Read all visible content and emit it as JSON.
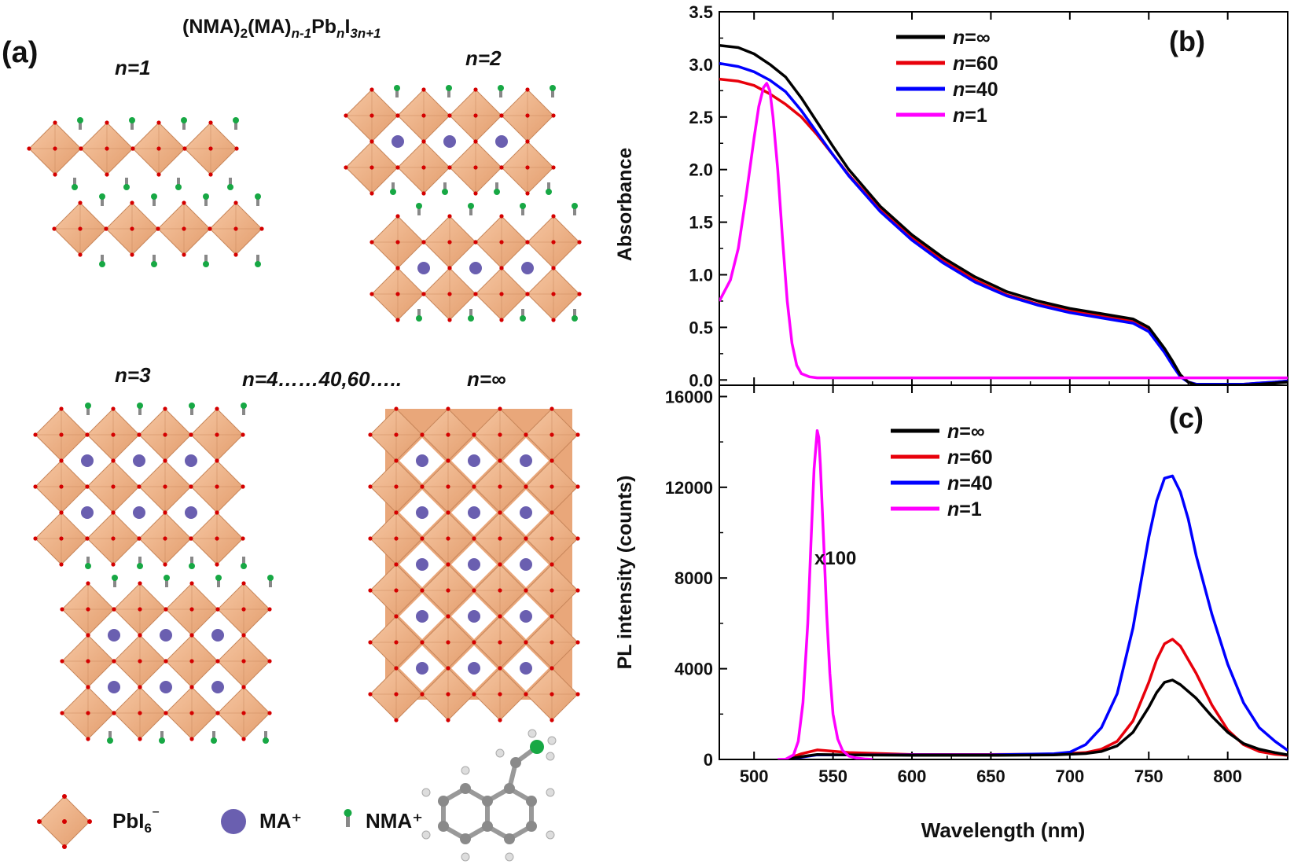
{
  "panel_a": {
    "label": "(a)",
    "formula": "(NMA)2(MA)n-1PbnI3n+1",
    "formula_parts": {
      "a": "(NMA)",
      "b": "2",
      "c": "(MA)",
      "d": "n-1",
      "e": "Pb",
      "f": "n",
      "g": "I",
      "h": "3n+1"
    },
    "n1": "n=1",
    "n2": "n=2",
    "n3": "n=3",
    "n4": "n=4……40,60…..",
    "ninf": "n=∞",
    "legend": {
      "pbi6": "PbI6⁻",
      "pbi6_base": "PbI",
      "pbi6_sub": "6",
      "pbi6_sup": "⁻",
      "ma": "MA⁺",
      "nma": "NMA⁺"
    },
    "colors": {
      "octahedron": "#f2b48a",
      "octahedron_edge": "#c8865a",
      "iodide": "#d40000",
      "ma": "#6a5fb0",
      "nma_head": "#17a844",
      "nma_tail": "#888888"
    }
  },
  "chart_data": [
    {
      "type": "line",
      "panel_label": "(b)",
      "title": "",
      "xlabel": "",
      "ylabel": "Absorbance",
      "xlim": [
        478,
        838
      ],
      "ylim": [
        -0.05,
        3.5
      ],
      "yticks": [
        0.0,
        0.5,
        1.0,
        1.5,
        2.0,
        2.5,
        3.0,
        3.5
      ],
      "ytick_labels": [
        "0.0",
        "0.5",
        "1.0",
        "1.5",
        "2.0",
        "2.5",
        "3.0",
        "3.5"
      ],
      "legend_position": "top-center",
      "series": [
        {
          "name": "n=∞",
          "color": "#000000",
          "x": [
            478,
            490,
            500,
            510,
            520,
            530,
            540,
            550,
            560,
            580,
            600,
            620,
            640,
            660,
            680,
            700,
            720,
            740,
            750,
            760,
            765,
            770,
            775,
            780,
            790,
            800,
            810,
            820,
            830,
            838
          ],
          "y": [
            3.18,
            3.16,
            3.1,
            3.0,
            2.88,
            2.68,
            2.45,
            2.22,
            2.0,
            1.65,
            1.38,
            1.16,
            0.98,
            0.84,
            0.75,
            0.68,
            0.63,
            0.58,
            0.5,
            0.3,
            0.18,
            0.05,
            -0.02,
            -0.05,
            -0.05,
            -0.05,
            -0.05,
            -0.04,
            -0.03,
            -0.02
          ]
        },
        {
          "name": "n=60",
          "color": "#e8000b",
          "x": [
            478,
            490,
            500,
            510,
            520,
            530,
            540,
            550,
            560,
            580,
            600,
            620,
            640,
            660,
            680,
            700,
            720,
            740,
            750,
            760,
            765,
            770,
            775,
            780,
            790,
            800,
            810,
            820,
            830,
            838
          ],
          "y": [
            2.86,
            2.84,
            2.8,
            2.72,
            2.62,
            2.5,
            2.33,
            2.14,
            1.95,
            1.62,
            1.35,
            1.13,
            0.95,
            0.81,
            0.72,
            0.66,
            0.61,
            0.56,
            0.48,
            0.28,
            0.16,
            0.04,
            -0.02,
            -0.04,
            -0.04,
            -0.04,
            -0.04,
            -0.03,
            -0.02,
            -0.01
          ]
        },
        {
          "name": "n=40",
          "color": "#0000ff",
          "x": [
            478,
            490,
            500,
            510,
            520,
            530,
            540,
            550,
            560,
            580,
            600,
            620,
            640,
            660,
            680,
            700,
            720,
            740,
            750,
            760,
            765,
            770,
            775,
            780,
            790,
            800,
            810,
            820,
            830,
            838
          ],
          "y": [
            3.01,
            2.98,
            2.93,
            2.85,
            2.74,
            2.56,
            2.35,
            2.14,
            1.94,
            1.6,
            1.33,
            1.11,
            0.93,
            0.8,
            0.71,
            0.64,
            0.59,
            0.54,
            0.46,
            0.26,
            0.14,
            0.03,
            -0.02,
            -0.04,
            -0.04,
            -0.04,
            -0.04,
            -0.03,
            -0.02,
            -0.01
          ]
        },
        {
          "name": "n=1",
          "color": "#ff00ff",
          "x": [
            478,
            485,
            490,
            495,
            500,
            503,
            506,
            508,
            510,
            512,
            515,
            518,
            521,
            524,
            527,
            530,
            535,
            540,
            560,
            600,
            700,
            760,
            780,
            800,
            838
          ],
          "y": [
            0.75,
            0.95,
            1.25,
            1.75,
            2.3,
            2.6,
            2.78,
            2.82,
            2.75,
            2.5,
            2.0,
            1.35,
            0.75,
            0.35,
            0.14,
            0.06,
            0.03,
            0.02,
            0.02,
            0.02,
            0.02,
            0.02,
            0.02,
            0.02,
            0.02
          ]
        }
      ]
    },
    {
      "type": "line",
      "panel_label": "(c)",
      "title": "",
      "xlabel": "Wavelength (nm)",
      "ylabel": "PL intensity (counts)",
      "xlim": [
        478,
        838
      ],
      "ylim": [
        0,
        16500
      ],
      "xticks": [
        500,
        550,
        600,
        650,
        700,
        750,
        800
      ],
      "xtick_labels": [
        "500",
        "550",
        "600",
        "650",
        "700",
        "750",
        "800"
      ],
      "yticks": [
        0,
        4000,
        8000,
        12000,
        16000
      ],
      "ytick_labels": [
        "0",
        "4000",
        "8000",
        "12000",
        "16000"
      ],
      "annotation": "x100",
      "legend_position": "top-center",
      "series": [
        {
          "name": "n=∞",
          "color": "#000000",
          "x": [
            520,
            530,
            540,
            560,
            600,
            650,
            690,
            710,
            720,
            730,
            740,
            750,
            755,
            760,
            765,
            770,
            780,
            790,
            800,
            810,
            820,
            830,
            838
          ],
          "y": [
            0,
            120,
            220,
            200,
            180,
            180,
            200,
            260,
            350,
            600,
            1200,
            2300,
            2950,
            3400,
            3500,
            3300,
            2700,
            1900,
            1200,
            700,
            450,
            300,
            200
          ]
        },
        {
          "name": "n=60",
          "color": "#e8000b",
          "x": [
            520,
            530,
            540,
            560,
            600,
            650,
            690,
            710,
            720,
            730,
            740,
            750,
            755,
            760,
            765,
            770,
            780,
            790,
            800,
            810,
            820,
            830,
            838
          ],
          "y": [
            0,
            250,
            420,
            300,
            220,
            220,
            230,
            300,
            450,
            800,
            1700,
            3400,
            4400,
            5100,
            5300,
            5000,
            3800,
            2400,
            1300,
            650,
            350,
            230,
            180
          ]
        },
        {
          "name": "n=40",
          "color": "#0000ff",
          "x": [
            520,
            530,
            540,
            560,
            600,
            650,
            690,
            700,
            710,
            720,
            730,
            740,
            745,
            750,
            755,
            760,
            765,
            770,
            775,
            780,
            790,
            800,
            810,
            820,
            830,
            838
          ],
          "y": [
            0,
            100,
            200,
            200,
            200,
            200,
            250,
            320,
            650,
            1400,
            2900,
            5800,
            7800,
            9800,
            11400,
            12400,
            12500,
            11800,
            10600,
            9000,
            6400,
            4200,
            2500,
            1400,
            800,
            400
          ]
        },
        {
          "name": "n=1",
          "color": "#ff00ff",
          "x": [
            515,
            520,
            525,
            528,
            531,
            534,
            536,
            538,
            540,
            541,
            542,
            544,
            546,
            548,
            550,
            553,
            556,
            560,
            565,
            570,
            575
          ],
          "y": [
            0,
            10,
            200,
            800,
            2500,
            6000,
            9500,
            12800,
            14500,
            14200,
            13000,
            9800,
            6400,
            3800,
            2000,
            900,
            400,
            150,
            60,
            20,
            0
          ]
        }
      ]
    }
  ]
}
